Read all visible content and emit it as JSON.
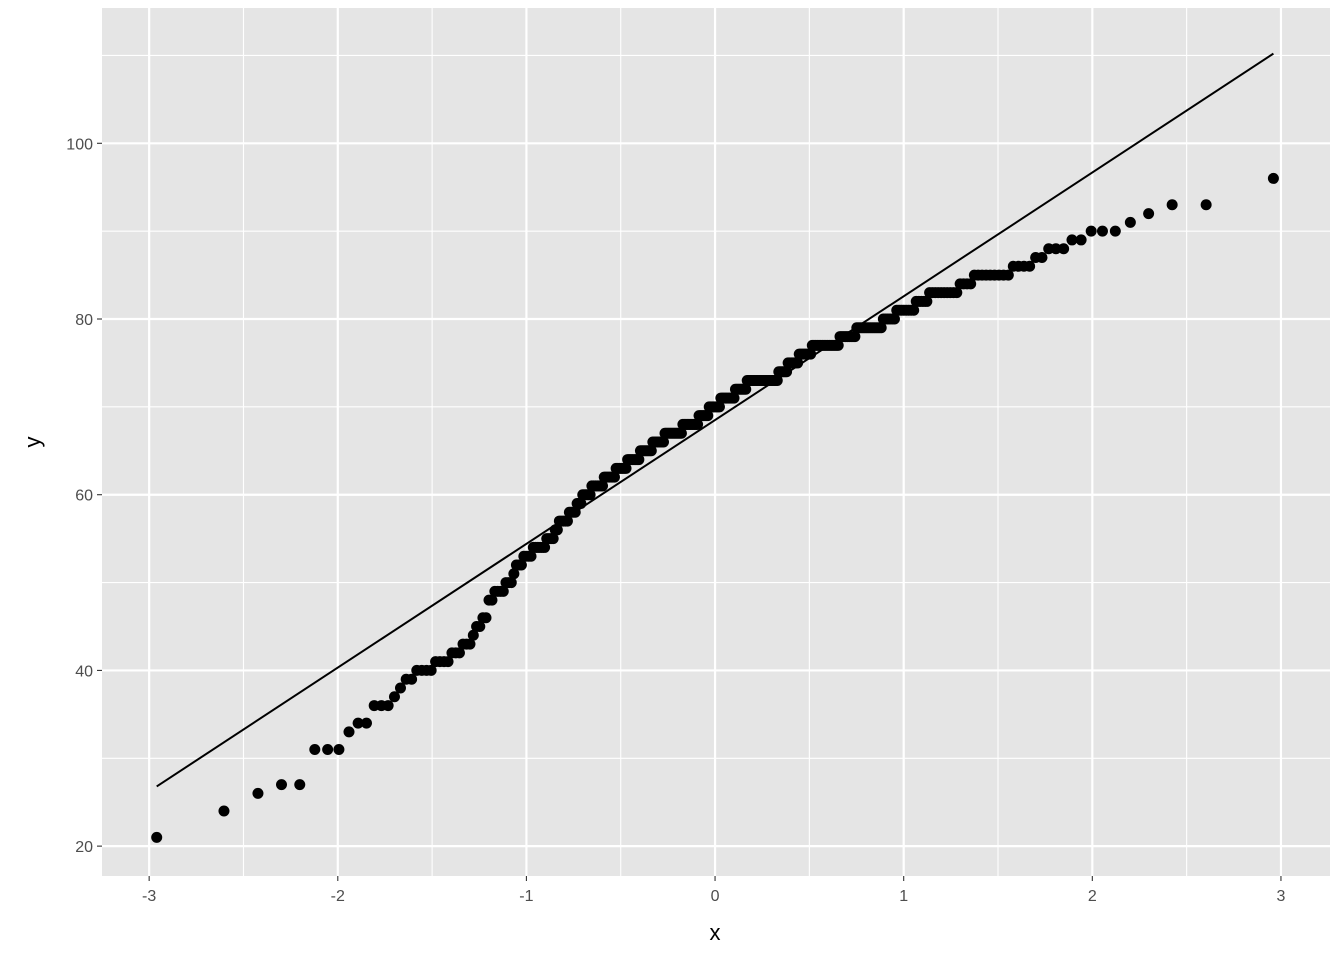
{
  "chart_data": {
    "type": "scatter",
    "subtype": "normal-qq",
    "title": "",
    "xlabel": "x",
    "ylabel": "y",
    "xlim": [
      -3.25,
      3.26
    ],
    "ylim": [
      16.6,
      115.4
    ],
    "x_ticks": [
      "-3",
      "-2",
      "-1",
      "0",
      "1",
      "2",
      "3"
    ],
    "y_ticks": [
      "20",
      "40",
      "60",
      "80",
      "100"
    ],
    "grid": true,
    "legend": "none",
    "sample_value_counts": [
      [
        21,
        1
      ],
      [
        24,
        1
      ],
      [
        26,
        1
      ],
      [
        27,
        2
      ],
      [
        31,
        3
      ],
      [
        33,
        1
      ],
      [
        34,
        2
      ],
      [
        36,
        3
      ],
      [
        37,
        1
      ],
      [
        38,
        1
      ],
      [
        39,
        2
      ],
      [
        40,
        4
      ],
      [
        41,
        4
      ],
      [
        42,
        3
      ],
      [
        43,
        3
      ],
      [
        44,
        1
      ],
      [
        45,
        2
      ],
      [
        46,
        2
      ],
      [
        48,
        2
      ],
      [
        49,
        4
      ],
      [
        50,
        3
      ],
      [
        51,
        1
      ],
      [
        52,
        3
      ],
      [
        53,
        4
      ],
      [
        54,
        6
      ],
      [
        55,
        4
      ],
      [
        56,
        2
      ],
      [
        57,
        5
      ],
      [
        58,
        4
      ],
      [
        59,
        3
      ],
      [
        60,
        5
      ],
      [
        61,
        7
      ],
      [
        62,
        7
      ],
      [
        63,
        7
      ],
      [
        64,
        8
      ],
      [
        65,
        8
      ],
      [
        66,
        8
      ],
      [
        67,
        12
      ],
      [
        68,
        11
      ],
      [
        69,
        7
      ],
      [
        70,
        8
      ],
      [
        71,
        10
      ],
      [
        72,
        8
      ],
      [
        73,
        21
      ],
      [
        74,
        6
      ],
      [
        75,
        7
      ],
      [
        76,
        8
      ],
      [
        77,
        16
      ],
      [
        78,
        9
      ],
      [
        79,
        13
      ],
      [
        80,
        6
      ],
      [
        81,
        8
      ],
      [
        82,
        5
      ],
      [
        83,
        10
      ],
      [
        84,
        4
      ],
      [
        85,
        9
      ],
      [
        86,
        4
      ],
      [
        87,
        2
      ],
      [
        88,
        3
      ],
      [
        89,
        2
      ],
      [
        90,
        3
      ],
      [
        91,
        1
      ],
      [
        92,
        1
      ],
      [
        93,
        2
      ],
      [
        96,
        1
      ]
    ],
    "reference_line": {
      "slope": 14.09,
      "intercept": 68.5,
      "x_range": [
        -2.96,
        2.96
      ]
    },
    "colors": {
      "panel": "#e5e5e5",
      "grid": "#ffffff",
      "points": "#000000",
      "line": "#000000"
    }
  }
}
